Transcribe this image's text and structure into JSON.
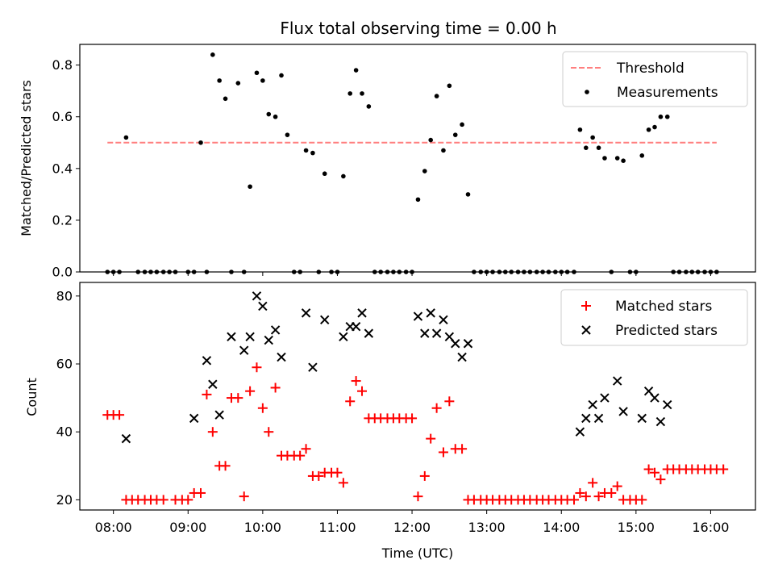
{
  "chart_data": [
    {
      "type": "scatter",
      "title": "Flux total observing time = 0.00 h",
      "ylabel": "Matched/Predicted stars",
      "xlabel": "",
      "xlim_hours": [
        7.55,
        16.6
      ],
      "ylim": [
        0,
        0.88
      ],
      "yticks": [
        "0.0",
        "0.2",
        "0.4",
        "0.6",
        "0.8"
      ],
      "legend_position": "top-right",
      "threshold": {
        "name": "Threshold",
        "value": 0.5,
        "x_range_hours": [
          7.92,
          16.08
        ],
        "color": "#ff7f7f"
      },
      "series": [
        {
          "name": "Measurements",
          "color": "#000000",
          "x_hours": [
            7.92,
            8.0,
            8.08,
            8.17,
            8.33,
            8.42,
            8.5,
            8.58,
            8.67,
            8.75,
            8.83,
            9.0,
            9.08,
            9.17,
            9.25,
            9.33,
            9.42,
            9.5,
            9.58,
            9.67,
            9.75,
            9.83,
            9.92,
            10.0,
            10.08,
            10.17,
            10.25,
            10.33,
            10.42,
            10.5,
            10.58,
            10.67,
            10.75,
            10.83,
            10.92,
            11.0,
            11.08,
            11.17,
            11.25,
            11.33,
            11.42,
            11.5,
            11.58,
            11.67,
            11.75,
            11.83,
            11.92,
            12.0,
            12.08,
            12.17,
            12.25,
            12.33,
            12.42,
            12.5,
            12.58,
            12.67,
            12.75,
            12.83,
            12.92,
            13.0,
            13.08,
            13.17,
            13.25,
            13.33,
            13.42,
            13.5,
            13.58,
            13.67,
            13.75,
            13.83,
            13.92,
            14.0,
            14.08,
            14.17,
            14.25,
            14.33,
            14.42,
            14.5,
            14.58,
            14.67,
            14.75,
            14.83,
            14.92,
            15.0,
            15.08,
            15.17,
            15.25,
            15.33,
            15.42,
            15.5,
            15.58,
            15.67,
            15.75,
            15.83,
            15.92,
            16.0,
            16.08
          ],
          "values": [
            0,
            0,
            0,
            0.52,
            0,
            0,
            0,
            0,
            0,
            0,
            0,
            0,
            0,
            0.5,
            0,
            0.84,
            0.74,
            0.67,
            0,
            0.73,
            0,
            0.33,
            0.77,
            0.74,
            0.61,
            0.6,
            0.76,
            0.53,
            0,
            0,
            0.47,
            0.46,
            0,
            0.38,
            0,
            0,
            0.37,
            0.69,
            0.78,
            0.69,
            0.64,
            0,
            0,
            0,
            0,
            0,
            0,
            0,
            0.28,
            0.39,
            0.51,
            0.68,
            0.47,
            0.72,
            0.53,
            0.57,
            0.3,
            0,
            0,
            0,
            0,
            0,
            0,
            0,
            0,
            0,
            0,
            0,
            0,
            0,
            0,
            0,
            0,
            0,
            0.55,
            0.48,
            0.52,
            0.48,
            0.44,
            0,
            0.44,
            0.43,
            0,
            0,
            0.45,
            0.55,
            0.56,
            0.6,
            0.6,
            0,
            0,
            0,
            0,
            0,
            0,
            0,
            0
          ]
        }
      ]
    },
    {
      "type": "scatter",
      "title": "",
      "ylabel": "Count",
      "xlabel": "Time (UTC)",
      "xlim_hours": [
        7.55,
        16.6
      ],
      "ylim": [
        17,
        84
      ],
      "yticks": [
        "20",
        "40",
        "60",
        "80"
      ],
      "xticks": [
        "08:00",
        "09:00",
        "10:00",
        "11:00",
        "12:00",
        "13:00",
        "14:00",
        "15:00",
        "16:00"
      ],
      "xtick_hours": [
        8,
        9,
        10,
        11,
        12,
        13,
        14,
        15,
        16
      ],
      "legend_position": "top-right",
      "series": [
        {
          "name": "Matched stars",
          "marker": "plus",
          "color": "#ff0000",
          "x_hours": [
            7.92,
            8.0,
            8.08,
            8.17,
            8.25,
            8.33,
            8.42,
            8.5,
            8.58,
            8.67,
            8.83,
            8.92,
            9.0,
            9.08,
            9.17,
            9.25,
            9.33,
            9.42,
            9.5,
            9.58,
            9.67,
            9.75,
            9.83,
            9.92,
            10.0,
            10.08,
            10.17,
            10.25,
            10.33,
            10.42,
            10.5,
            10.58,
            10.67,
            10.75,
            10.83,
            10.92,
            11.0,
            11.08,
            11.17,
            11.25,
            11.33,
            11.42,
            11.5,
            11.58,
            11.67,
            11.75,
            11.83,
            11.92,
            12.0,
            12.08,
            12.17,
            12.25,
            12.33,
            12.42,
            12.5,
            12.58,
            12.67,
            12.75,
            12.83,
            12.92,
            13.0,
            13.08,
            13.17,
            13.25,
            13.33,
            13.42,
            13.5,
            13.58,
            13.67,
            13.75,
            13.83,
            13.92,
            14.0,
            14.08,
            14.17,
            14.25,
            14.33,
            14.42,
            14.5,
            14.58,
            14.67,
            14.75,
            14.83,
            14.92,
            15.0,
            15.08,
            15.17,
            15.25,
            15.33,
            15.42,
            15.5,
            15.58,
            15.67,
            15.75,
            15.83,
            15.92,
            16.0,
            16.08,
            16.17
          ],
          "values": [
            45,
            45,
            45,
            20,
            20,
            20,
            20,
            20,
            20,
            20,
            20,
            20,
            20,
            22,
            22,
            51,
            40,
            30,
            30,
            50,
            50,
            21,
            52,
            59,
            47,
            40,
            53,
            33,
            33,
            33,
            33,
            35,
            27,
            27,
            28,
            28,
            28,
            25,
            49,
            55,
            52,
            44,
            44,
            44,
            44,
            44,
            44,
            44,
            44,
            21,
            27,
            38,
            47,
            34,
            49,
            35,
            35,
            20,
            20,
            20,
            20,
            20,
            20,
            20,
            20,
            20,
            20,
            20,
            20,
            20,
            20,
            20,
            20,
            20,
            20,
            22,
            21,
            25,
            21,
            22,
            22,
            24,
            20,
            20,
            20,
            20,
            29,
            28,
            26,
            29,
            29,
            29,
            29,
            29,
            29,
            29,
            29,
            29,
            29
          ]
        },
        {
          "name": "Predicted stars",
          "marker": "x",
          "color": "#000000",
          "x_hours": [
            8.17,
            9.08,
            9.25,
            9.33,
            9.42,
            9.58,
            9.75,
            9.83,
            9.92,
            10.0,
            10.08,
            10.17,
            10.25,
            10.58,
            10.67,
            10.83,
            11.08,
            11.17,
            11.25,
            11.33,
            11.42,
            12.08,
            12.17,
            12.25,
            12.33,
            12.42,
            12.5,
            12.58,
            12.67,
            12.75,
            14.25,
            14.33,
            14.42,
            14.5,
            14.58,
            14.75,
            14.83,
            15.08,
            15.17,
            15.25,
            15.33,
            15.42
          ],
          "values": [
            38,
            44,
            61,
            54,
            45,
            68,
            64,
            68,
            80,
            77,
            67,
            70,
            62,
            75,
            59,
            73,
            68,
            71,
            71,
            75,
            69,
            74,
            69,
            75,
            69,
            73,
            68,
            66,
            62,
            66,
            40,
            44,
            48,
            44,
            50,
            55,
            46,
            44,
            52,
            50,
            43,
            48
          ]
        }
      ]
    }
  ]
}
